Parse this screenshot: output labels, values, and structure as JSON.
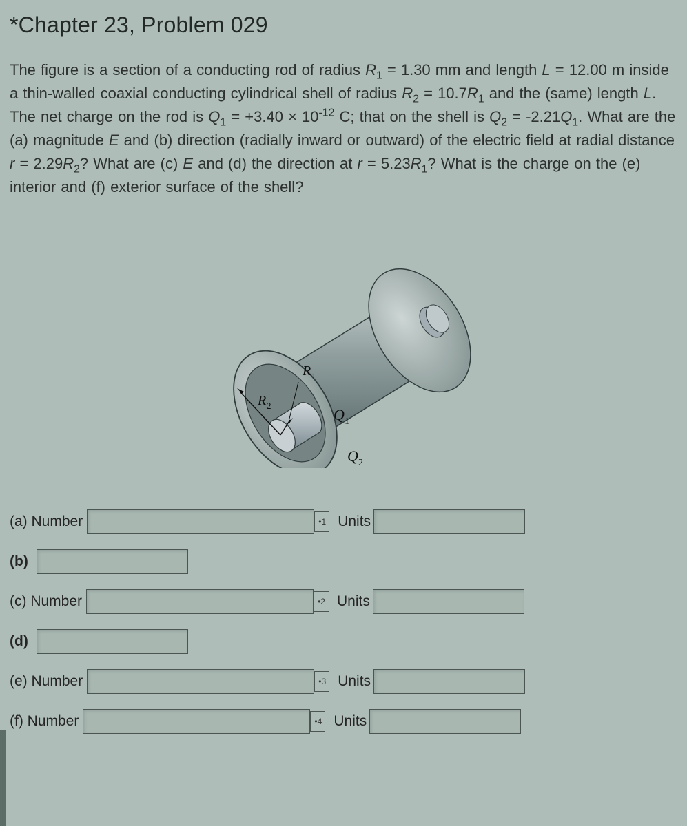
{
  "title": "*Chapter 23, Problem 029",
  "problem_html": "The figure is a section of a conducting rod of radius <span class='ital'>R</span><sub>1</sub> = 1.30 mm and length <span class='ital'>L</span> = 12.00 m inside a thin-walled coaxial conducting cylindrical shell of radius <span class='ital'>R</span><sub>2</sub> = 10.7<span class='ital'>R</span><sub>1</sub> and the (same) length <span class='ital'>L</span>. The net charge on the rod is <span class='ital'>Q</span><sub>1</sub> = +3.40 × 10<sup>-12</sup> C; that on the shell is <span class='ital'>Q</span><sub>2</sub> = -2.21<span class='ital'>Q</span><sub>1</sub>. What are the <span class='part'>(a)</span> magnitude <span class='ital'>E</span> and <span class='part'>(b)</span> direction (radially inward or outward) of the electric field at radial distance <span class='ital'>r</span> = 2.29<span class='ital'>R</span><sub>2</sub>? What are <span class='part'>(c)</span> <span class='ital'>E</span> and <span class='part'>(d)</span> the direction at <span class='ital'>r</span> = 5.23<span class='ital'>R</span><sub>1</sub>? What is the charge on the <span class='part'>(e)</span> interior and <span class='part'>(f)</span> exterior surface of the shell?",
  "figure": {
    "label_R1": "R₁",
    "label_R2": "R₂",
    "label_Q1": "Q₁",
    "label_Q2": "Q₂",
    "rod_color": "#9aa8b0",
    "rod_highlight": "#cdd6db",
    "shell_color": "#6d7d7e",
    "shell_highlight": "#b8c6c5",
    "shade": "#47555a"
  },
  "answers": {
    "a": {
      "label": "(a) Number",
      "marker": "•1",
      "units_label": "Units"
    },
    "b": {
      "label": "(b) "
    },
    "c": {
      "label": "(c) Number",
      "marker": "•2",
      "units_label": "Units"
    },
    "d": {
      "label": "(d) "
    },
    "e": {
      "label": "(e) Number",
      "marker": "•3",
      "units_label": "Units"
    },
    "f": {
      "label": "(f) Number",
      "marker": "•4",
      "units_label": "Units"
    }
  }
}
